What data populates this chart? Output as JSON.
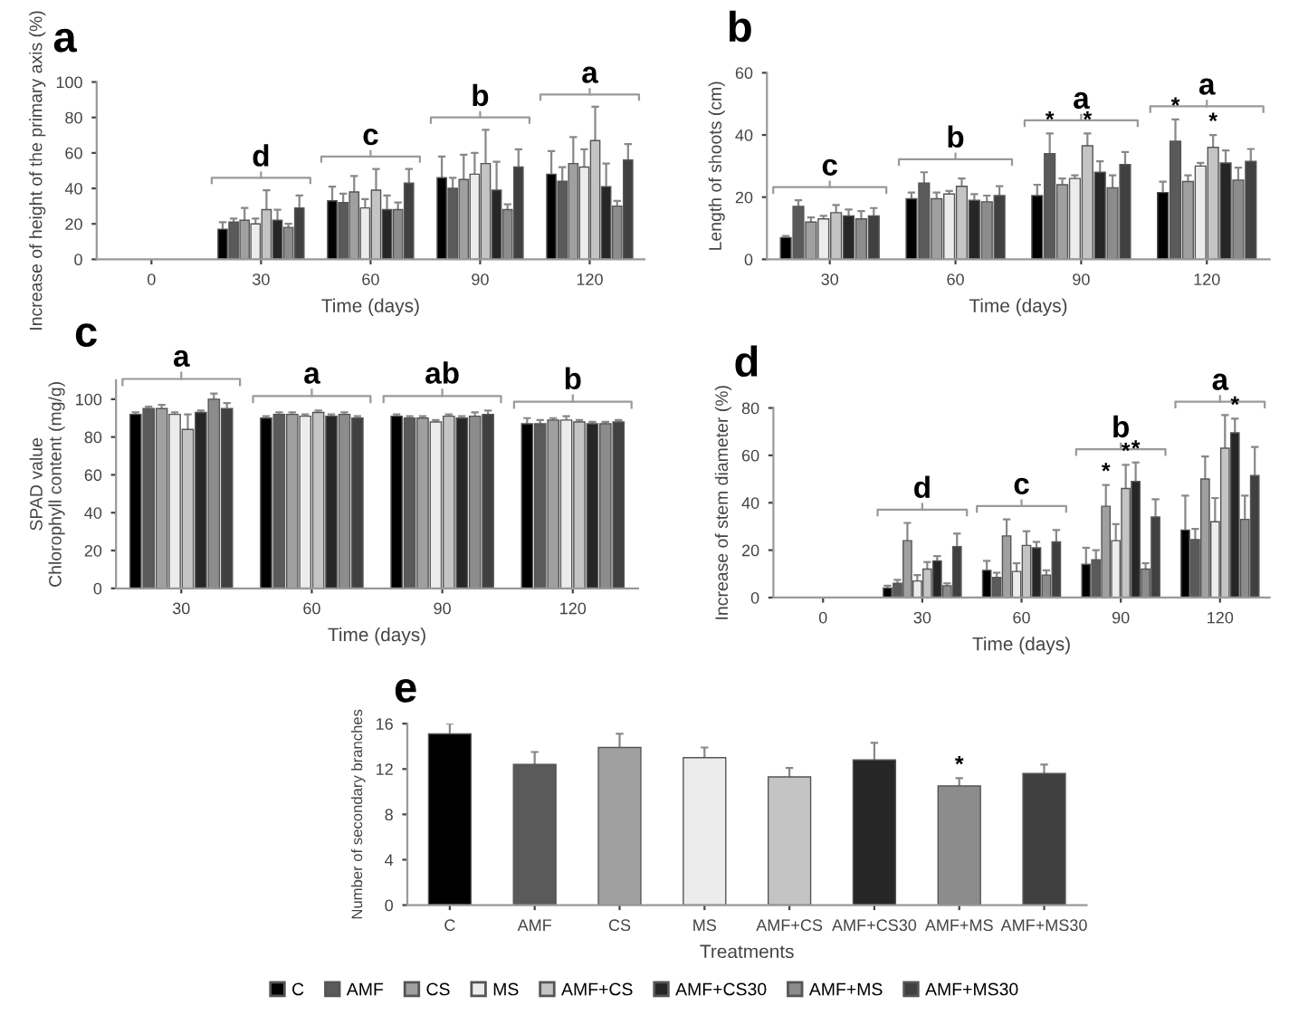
{
  "chart_data": [
    {
      "type": "bar",
      "title": "a",
      "xlabel": "Time (days)",
      "ylabel": "Increase of height of the primary axis (%)",
      "categories": [
        "0",
        "30",
        "60",
        "90",
        "120"
      ],
      "ylim": [
        0,
        100
      ],
      "yticks": [
        0,
        20,
        40,
        60,
        80,
        100
      ],
      "legend": "bottom",
      "annotations": [
        "d",
        "c",
        "b",
        "a"
      ],
      "series": [
        {
          "name": "C",
          "color": "#000000",
          "values": [
            null,
            17,
            33,
            46,
            48
          ],
          "errors": [
            null,
            4,
            8,
            12,
            13
          ]
        },
        {
          "name": "AMF",
          "color": "#5a5a5a",
          "values": [
            null,
            21,
            32,
            40,
            44
          ],
          "errors": [
            null,
            2,
            5,
            6,
            8
          ]
        },
        {
          "name": "CS",
          "color": "#a0a0a0",
          "values": [
            null,
            22,
            38,
            45,
            54
          ],
          "errors": [
            null,
            7,
            9,
            14,
            15
          ]
        },
        {
          "name": "MS",
          "color": "#ececec",
          "values": [
            null,
            20,
            29,
            48,
            52
          ],
          "errors": [
            null,
            3,
            5,
            12,
            10
          ]
        },
        {
          "name": "AMF+CS",
          "color": "#c4c4c4",
          "values": [
            null,
            28,
            39,
            54,
            67
          ],
          "errors": [
            null,
            11,
            12,
            19,
            19
          ]
        },
        {
          "name": "AMF+CS30",
          "color": "#262626",
          "values": [
            null,
            22,
            28,
            39,
            41
          ],
          "errors": [
            null,
            6,
            8,
            16,
            13
          ]
        },
        {
          "name": "AMF+MS",
          "color": "#8c8c8c",
          "values": [
            null,
            18,
            28,
            28,
            30
          ],
          "errors": [
            null,
            2,
            4,
            3,
            3
          ]
        },
        {
          "name": "AMF+MS30",
          "color": "#404040",
          "values": [
            null,
            29,
            43,
            52,
            56
          ],
          "errors": [
            null,
            7,
            8,
            10,
            9
          ]
        }
      ]
    },
    {
      "type": "bar",
      "title": "b",
      "xlabel": "Time (days)",
      "ylabel": "Length of shoots (cm)",
      "categories": [
        "30",
        "60",
        "90",
        "120"
      ],
      "ylim": [
        0,
        60
      ],
      "yticks": [
        0,
        20,
        40,
        60
      ],
      "annotations": [
        "c",
        "b",
        "a",
        "a"
      ],
      "series": [
        {
          "color": "#000000",
          "values": [
            7,
            19.5,
            20.5,
            21.5
          ],
          "errors": [
            0.5,
            2,
            3.5,
            3.5
          ]
        },
        {
          "color": "#5a5a5a",
          "values": [
            17,
            24.5,
            34,
            38
          ],
          "errors": [
            2,
            3.5,
            6.5,
            7
          ],
          "value_labels": [
            null,
            null,
            "*",
            "*"
          ]
        },
        {
          "color": "#a0a0a0",
          "values": [
            12,
            19.5,
            24,
            25
          ],
          "errors": [
            1.5,
            2,
            2,
            2
          ]
        },
        {
          "color": "#ececec",
          "values": [
            13,
            21,
            26,
            30
          ],
          "errors": [
            1,
            1,
            1,
            1
          ]
        },
        {
          "color": "#c4c4c4",
          "values": [
            15,
            23.5,
            36.5,
            36
          ],
          "errors": [
            2.5,
            2.5,
            4,
            4
          ],
          "value_labels": [
            null,
            null,
            "*",
            "*"
          ]
        },
        {
          "color": "#262626",
          "values": [
            14,
            19,
            28,
            31
          ],
          "errors": [
            2,
            2,
            3.5,
            4
          ]
        },
        {
          "color": "#8c8c8c",
          "values": [
            13,
            18.5,
            23,
            25.5
          ],
          "errors": [
            2.5,
            2,
            4,
            4
          ]
        },
        {
          "color": "#404040",
          "values": [
            14,
            20.5,
            30.5,
            31.5
          ],
          "errors": [
            2.5,
            3,
            4,
            4
          ]
        }
      ]
    },
    {
      "type": "bar",
      "title": "c",
      "xlabel": "Time (days)",
      "ylabel": "SPAD value\nChlorophyll content (mg/g)",
      "categories": [
        "30",
        "60",
        "90",
        "120"
      ],
      "ylim": [
        0,
        110
      ],
      "yticks": [
        0,
        20,
        40,
        60,
        80,
        100
      ],
      "annotations": [
        "a",
        "a",
        "ab",
        "b"
      ],
      "series": [
        {
          "color": "#000000",
          "values": [
            92,
            90,
            91,
            87
          ],
          "errors": [
            1,
            1,
            1,
            3
          ]
        },
        {
          "color": "#5a5a5a",
          "values": [
            95,
            92,
            90,
            87
          ],
          "errors": [
            1,
            1,
            1,
            2
          ]
        },
        {
          "color": "#a0a0a0",
          "values": [
            95,
            92,
            90,
            89
          ],
          "errors": [
            2,
            1,
            1,
            1
          ]
        },
        {
          "color": "#ececec",
          "values": [
            92,
            91,
            88,
            89
          ],
          "errors": [
            1,
            1,
            1,
            2
          ]
        },
        {
          "color": "#c4c4c4",
          "values": [
            84,
            93,
            91,
            88
          ],
          "errors": [
            8,
            1,
            1,
            1
          ]
        },
        {
          "color": "#262626",
          "values": [
            93,
            91,
            90,
            87
          ],
          "errors": [
            1,
            1,
            1,
            1
          ]
        },
        {
          "color": "#8c8c8c",
          "values": [
            100,
            92,
            91,
            87
          ],
          "errors": [
            3,
            1,
            2,
            1
          ]
        },
        {
          "color": "#404040",
          "values": [
            95,
            90,
            92,
            88
          ],
          "errors": [
            3,
            1,
            2,
            1
          ]
        }
      ]
    },
    {
      "type": "bar",
      "title": "d",
      "xlabel": "Time (days)",
      "ylabel": "Increase of stem diameter (%)",
      "categories": [
        "0",
        "30",
        "60",
        "90",
        "120"
      ],
      "ylim": [
        0,
        80
      ],
      "yticks": [
        0,
        20,
        40,
        60,
        80
      ],
      "annotations": [
        "d",
        "c",
        "b",
        "a"
      ],
      "series": [
        {
          "color": "#000000",
          "values": [
            null,
            4,
            11.5,
            14,
            28.5
          ],
          "errors": [
            null,
            1,
            4,
            7,
            14.5
          ]
        },
        {
          "color": "#5a5a5a",
          "values": [
            null,
            6,
            8.5,
            16,
            24.5
          ],
          "errors": [
            null,
            1.5,
            2,
            4,
            4.5
          ]
        },
        {
          "color": "#a0a0a0",
          "values": [
            null,
            24,
            26,
            38.5,
            50
          ],
          "errors": [
            null,
            7.5,
            7,
            9,
            9.5
          ],
          "value_labels": [
            null,
            null,
            null,
            "*",
            null
          ]
        },
        {
          "color": "#ececec",
          "values": [
            null,
            7,
            11,
            24,
            32
          ],
          "errors": [
            null,
            2.5,
            3.5,
            7,
            10
          ]
        },
        {
          "color": "#c4c4c4",
          "values": [
            null,
            12,
            22,
            46,
            63
          ],
          "errors": [
            null,
            3,
            6,
            10,
            14
          ],
          "value_labels": [
            null,
            null,
            null,
            "*",
            null
          ]
        },
        {
          "color": "#262626",
          "values": [
            null,
            15.5,
            21,
            49,
            69.5
          ],
          "errors": [
            null,
            2,
            2.5,
            8,
            6
          ],
          "value_labels": [
            null,
            null,
            null,
            "*",
            "*"
          ]
        },
        {
          "color": "#8c8c8c",
          "values": [
            null,
            5,
            9.5,
            12,
            33
          ],
          "errors": [
            null,
            1,
            2,
            2.5,
            10
          ]
        },
        {
          "color": "#404040",
          "values": [
            null,
            21.5,
            23.5,
            34,
            51.5
          ],
          "errors": [
            null,
            5.5,
            5,
            7.5,
            12
          ]
        }
      ]
    },
    {
      "type": "bar",
      "title": "e",
      "xlabel": "Treatments",
      "ylabel": "Number of secondary branches",
      "categories": [
        "C",
        "AMF",
        "CS",
        "MS",
        "AMF+CS",
        "AMF+CS30",
        "AMF+MS",
        "AMF+MS30"
      ],
      "ylim": [
        0,
        16
      ],
      "yticks": [
        0,
        4,
        8,
        12,
        16
      ],
      "values": [
        15.1,
        12.4,
        13.9,
        13,
        11.3,
        12.8,
        10.5,
        11.6
      ],
      "errors": [
        0.9,
        1.1,
        1.2,
        0.9,
        0.8,
        1.5,
        0.7,
        0.8
      ],
      "colors": [
        "#000000",
        "#5a5a5a",
        "#a0a0a0",
        "#ececec",
        "#c4c4c4",
        "#262626",
        "#8c8c8c",
        "#404040"
      ],
      "value_labels": [
        null,
        null,
        null,
        null,
        null,
        null,
        "*",
        null
      ]
    }
  ]
}
